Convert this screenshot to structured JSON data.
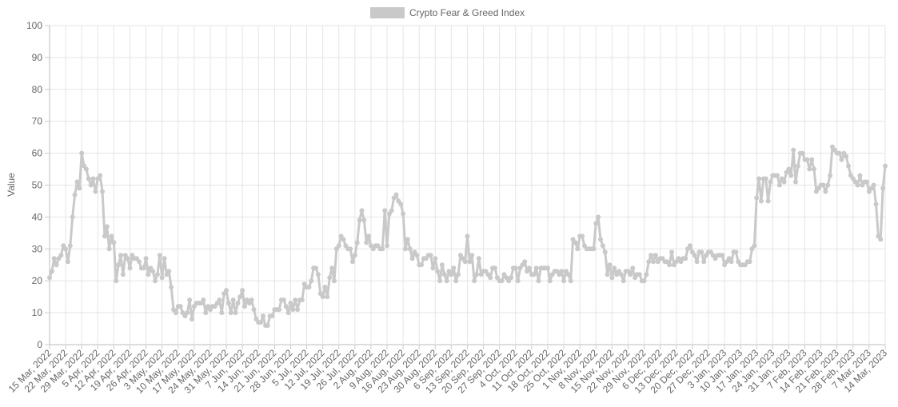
{
  "chart_data": {
    "type": "line",
    "y_label": "Value",
    "ylim": [
      0,
      100
    ],
    "yticks": [
      0,
      10,
      20,
      30,
      40,
      50,
      60,
      70,
      80,
      90,
      100
    ],
    "grid": true,
    "legend": "top",
    "categories": [
      "15 Mar, 2022",
      null,
      null,
      null,
      null,
      null,
      null,
      "22 Mar, 2022",
      null,
      null,
      null,
      null,
      null,
      null,
      "29 Mar, 2022",
      null,
      null,
      null,
      null,
      null,
      null,
      "5 Apr, 2022",
      null,
      null,
      null,
      null,
      null,
      null,
      "12 Apr, 2022",
      null,
      null,
      null,
      null,
      null,
      null,
      "19 Apr, 2022",
      null,
      null,
      null,
      null,
      null,
      null,
      "26 Apr, 2022",
      null,
      null,
      null,
      null,
      null,
      null,
      "3 May, 2022",
      null,
      null,
      null,
      null,
      null,
      null,
      "10 May, 2022",
      null,
      null,
      null,
      null,
      null,
      null,
      "17 May, 2022",
      null,
      null,
      null,
      null,
      null,
      null,
      "24 May, 2022",
      null,
      null,
      null,
      null,
      null,
      null,
      "31 May, 2022",
      null,
      null,
      null,
      null,
      null,
      null,
      "7 Jun, 2022",
      null,
      null,
      null,
      null,
      null,
      null,
      "14 Jun, 2022",
      null,
      null,
      null,
      null,
      null,
      null,
      "21 Jun, 2022",
      null,
      null,
      null,
      null,
      null,
      null,
      "28 Jun, 2022",
      null,
      null,
      null,
      null,
      null,
      null,
      "5 Jul, 2022",
      null,
      null,
      null,
      null,
      null,
      null,
      "12 Jul, 2022",
      null,
      null,
      null,
      null,
      null,
      null,
      "19 Jul, 2022",
      null,
      null,
      null,
      null,
      null,
      null,
      "26 Jul, 2022",
      null,
      null,
      null,
      null,
      null,
      null,
      "2 Aug, 2022",
      null,
      null,
      null,
      null,
      null,
      null,
      "9 Aug, 2022",
      null,
      null,
      null,
      null,
      null,
      null,
      "16 Aug, 2022",
      null,
      null,
      null,
      null,
      null,
      null,
      "23 Aug, 2022",
      null,
      null,
      null,
      null,
      null,
      null,
      "30 Aug, 2022",
      null,
      null,
      null,
      null,
      null,
      null,
      "6 Sep, 2022",
      null,
      null,
      null,
      null,
      null,
      null,
      "13 Sep, 2022",
      null,
      null,
      null,
      null,
      null,
      null,
      "20 Sep, 2022",
      null,
      null,
      null,
      null,
      null,
      null,
      "27 Sep, 2022",
      null,
      null,
      null,
      null,
      null,
      null,
      "4 Oct, 2022",
      null,
      null,
      null,
      null,
      null,
      null,
      "11 Oct, 2022",
      null,
      null,
      null,
      null,
      null,
      null,
      "18 Oct, 2022",
      null,
      null,
      null,
      null,
      null,
      null,
      "25 Oct, 2022",
      null,
      null,
      null,
      null,
      null,
      null,
      "1 Nov, 2022",
      null,
      null,
      null,
      null,
      null,
      null,
      "8 Nov, 2022",
      null,
      null,
      null,
      null,
      null,
      null,
      "15 Nov, 2022",
      null,
      null,
      null,
      null,
      null,
      null,
      "22 Nov, 2022",
      null,
      null,
      null,
      null,
      null,
      null,
      "29 Nov, 2022",
      null,
      null,
      null,
      null,
      null,
      null,
      "6 Dec, 2022",
      null,
      null,
      null,
      null,
      null,
      null,
      "13 Dec, 2022",
      null,
      null,
      null,
      null,
      null,
      null,
      "20 Dec, 2022",
      null,
      null,
      null,
      null,
      null,
      null,
      "27 Dec, 2022",
      null,
      null,
      null,
      null,
      null,
      null,
      "3 Jan, 2023",
      null,
      null,
      null,
      null,
      null,
      null,
      "10 Jan, 2023",
      null,
      null,
      null,
      null,
      null,
      null,
      "17 Jan, 2023",
      null,
      null,
      null,
      null,
      null,
      null,
      "24 Jan, 2023",
      null,
      null,
      null,
      null,
      null,
      null,
      "31 Jan, 2023",
      null,
      null,
      null,
      null,
      null,
      null,
      "7 Feb, 2023",
      null,
      null,
      null,
      null,
      null,
      null,
      "14 Feb, 2023",
      null,
      null,
      null,
      null,
      null,
      null,
      "21 Feb, 2023",
      null,
      null,
      null,
      null,
      null,
      null,
      "28 Feb, 2023",
      null,
      null,
      null,
      null,
      null,
      null,
      "7 Mar, 2023",
      null,
      null,
      null,
      null,
      null,
      null,
      "14 Mar, 2023"
    ],
    "series": [
      {
        "name": "Crypto Fear & Greed Index",
        "color": "#c9c9c9",
        "values": [
          21,
          23,
          27,
          25,
          27,
          28,
          31,
          30,
          26,
          31,
          40,
          47,
          51,
          49,
          60,
          56,
          55,
          52,
          50,
          52,
          48,
          52,
          53,
          48,
          34,
          37,
          30,
          34,
          32,
          20,
          25,
          28,
          22,
          28,
          27,
          24,
          28,
          27,
          27,
          26,
          24,
          24,
          27,
          22,
          24,
          23,
          20,
          22,
          28,
          21,
          27,
          22,
          23,
          18,
          11,
          10,
          12,
          12,
          10,
          9,
          10,
          14,
          8,
          12,
          13,
          13,
          13,
          14,
          10,
          12,
          11,
          12,
          12,
          13,
          14,
          10,
          16,
          17,
          13,
          10,
          14,
          10,
          13,
          15,
          17,
          12,
          14,
          13,
          14,
          11,
          8,
          7,
          7,
          9,
          6,
          6,
          9,
          9,
          11,
          11,
          11,
          14,
          14,
          12,
          10,
          13,
          11,
          14,
          11,
          14,
          14,
          19,
          18,
          18,
          20,
          24,
          24,
          22,
          16,
          15,
          18,
          15,
          21,
          24,
          20,
          30,
          31,
          34,
          33,
          31,
          30,
          30,
          26,
          28,
          32,
          39,
          42,
          39,
          32,
          34,
          31,
          30,
          31,
          31,
          30,
          30,
          42,
          31,
          41,
          42,
          46,
          47,
          45,
          44,
          41,
          30,
          33,
          30,
          27,
          29,
          28,
          25,
          25,
          27,
          27,
          28,
          28,
          24,
          27,
          23,
          20,
          25,
          22,
          20,
          23,
          22,
          24,
          20,
          22,
          28,
          27,
          26,
          34,
          26,
          28,
          20,
          22,
          27,
          22,
          23,
          23,
          22,
          21,
          24,
          24,
          21,
          20,
          20,
          22,
          21,
          20,
          21,
          24,
          24,
          20,
          24,
          25,
          26,
          23,
          24,
          22,
          22,
          24,
          20,
          24,
          24,
          24,
          24,
          20,
          22,
          23,
          23,
          22,
          23,
          20,
          23,
          22,
          20,
          33,
          32,
          30,
          34,
          34,
          31,
          30,
          30,
          30,
          30,
          38,
          40,
          33,
          31,
          29,
          22,
          25,
          21,
          24,
          22,
          23,
          22,
          20,
          23,
          23,
          22,
          24,
          21,
          22,
          22,
          20,
          20,
          22,
          26,
          28,
          26,
          28,
          26,
          27,
          27,
          26,
          26,
          25,
          29,
          25,
          26,
          27,
          26,
          27,
          27,
          30,
          31,
          29,
          28,
          26,
          29,
          29,
          26,
          28,
          29,
          29,
          28,
          27,
          28,
          28,
          28,
          25,
          26,
          27,
          26,
          29,
          29,
          26,
          25,
          25,
          25,
          26,
          26,
          30,
          31,
          46,
          52,
          45,
          52,
          52,
          45,
          51,
          53,
          53,
          53,
          50,
          52,
          51,
          54,
          55,
          53,
          61,
          51,
          56,
          60,
          60,
          58,
          58,
          55,
          58,
          55,
          48,
          49,
          50,
          50,
          48,
          50,
          53,
          62,
          61,
          60,
          60,
          58,
          60,
          59,
          56,
          53,
          52,
          51,
          50,
          53,
          50,
          51,
          51,
          48,
          49,
          50,
          44,
          34,
          33,
          49,
          56
        ]
      }
    ]
  }
}
